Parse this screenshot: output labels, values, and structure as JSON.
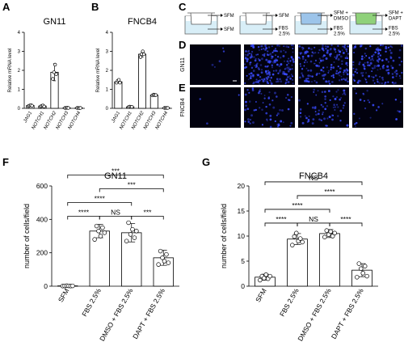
{
  "panels": {
    "A": "A",
    "B": "B",
    "C": "C",
    "D": "D",
    "E": "E",
    "F": "F",
    "G": "G"
  },
  "chart_data": [
    {
      "id": "A",
      "type": "bar",
      "title": "GN11",
      "ylabel": "Relative mRNA level",
      "categories": [
        "JAG1",
        "NOTCH1",
        "NOTCH2",
        "NOTCH3",
        "NOTCH4"
      ],
      "values": [
        0.15,
        0.12,
        1.9,
        0.02,
        0.02
      ],
      "errors": [
        0.03,
        0.03,
        0.45,
        0.01,
        0.01
      ],
      "points": [
        [
          0.12,
          0.15,
          0.17,
          0.14
        ],
        [
          0.1,
          0.13,
          0.15,
          0.1
        ],
        [
          1.55,
          1.9,
          2.3,
          1.8
        ],
        [
          0.02,
          0.02,
          0.03,
          0.02
        ],
        [
          0.02,
          0.02,
          0.01,
          0.02
        ]
      ],
      "ylim": [
        0,
        4
      ],
      "yticks": [
        0,
        1,
        2,
        3,
        4
      ]
    },
    {
      "id": "B",
      "type": "bar",
      "title": "FNCB4",
      "ylabel": "Relative mRNA level",
      "categories": [
        "JAG1",
        "NOTCH1",
        "NOTCH2",
        "NOTCH3",
        "NOTCH4"
      ],
      "values": [
        1.4,
        0.08,
        2.85,
        0.7,
        0.02
      ],
      "errors": [
        0.08,
        0.02,
        0.15,
        0.04,
        0.01
      ],
      "points": [
        [
          1.35,
          1.45,
          1.5,
          1.35
        ],
        [
          0.07,
          0.09,
          0.08,
          0.08
        ],
        [
          2.7,
          2.85,
          3.0,
          2.85
        ],
        [
          0.68,
          0.72,
          0.7,
          0.7
        ],
        [
          0.02,
          0.02,
          0.02,
          0.02
        ]
      ],
      "ylim": [
        0,
        4
      ],
      "yticks": [
        0,
        1,
        2,
        3,
        4
      ]
    },
    {
      "id": "F",
      "type": "bar",
      "title": "GN11",
      "ylabel": "number of cells/field",
      "categories": [
        "SFM",
        "FBS 2.5%",
        "DMSO + FBS 2.5%",
        "DAPT + FBS 2.5%"
      ],
      "values": [
        2,
        330,
        320,
        170
      ],
      "errors": [
        2,
        40,
        55,
        45
      ],
      "points": [
        [
          1,
          2,
          3,
          2,
          1,
          2
        ],
        [
          280,
          360,
          330,
          300,
          350,
          320
        ],
        [
          270,
          380,
          310,
          340,
          290,
          330
        ],
        [
          130,
          210,
          170,
          150,
          190,
          140
        ]
      ],
      "ylim": [
        0,
        600
      ],
      "yticks": [
        0,
        200,
        400,
        600
      ],
      "significance": [
        {
          "from": 0,
          "to": 1,
          "label": "****",
          "level": 1
        },
        {
          "from": 1,
          "to": 2,
          "label": "NS",
          "level": 1
        },
        {
          "from": 2,
          "to": 3,
          "label": "***",
          "level": 1
        },
        {
          "from": 0,
          "to": 2,
          "label": "****",
          "level": 2
        },
        {
          "from": 1,
          "to": 3,
          "label": "***",
          "level": 3
        },
        {
          "from": 0,
          "to": 3,
          "label": "***",
          "level": 4
        }
      ]
    },
    {
      "id": "G",
      "type": "bar",
      "title": "FNCB4",
      "ylabel": "number of cells/field",
      "categories": [
        "SFM",
        "FBS 2.5%",
        "DMSO + FBS 2.5%",
        "DAPT + FBS 2.5%"
      ],
      "values": [
        1.8,
        9.4,
        10.5,
        3.2
      ],
      "errors": [
        0.6,
        1.1,
        0.8,
        1.3
      ],
      "points": [
        [
          1.2,
          2.0,
          1.6,
          2.3,
          1.5,
          2.0
        ],
        [
          8.2,
          9.9,
          10.6,
          9.0,
          9.5,
          8.8
        ],
        [
          9.8,
          11.1,
          10.3,
          10.9,
          10.0,
          10.6
        ],
        [
          1.8,
          4.5,
          3.5,
          2.6,
          4.0,
          2.0
        ]
      ],
      "ylim": [
        0,
        20
      ],
      "yticks": [
        0,
        5,
        10,
        15,
        20
      ],
      "significance": [
        {
          "from": 0,
          "to": 1,
          "label": "****",
          "level": 1
        },
        {
          "from": 1,
          "to": 2,
          "label": "NS",
          "level": 1
        },
        {
          "from": 2,
          "to": 3,
          "label": "****",
          "level": 1
        },
        {
          "from": 0,
          "to": 2,
          "label": "****",
          "level": 2
        },
        {
          "from": 1,
          "to": 3,
          "label": "****",
          "level": 3
        },
        {
          "from": 0,
          "to": 3,
          "label": "NS",
          "level": 4
        }
      ]
    }
  ],
  "schematic": {
    "wells": [
      {
        "top": "SFM",
        "bottom": "SFM",
        "fill": "#ffffff"
      },
      {
        "top": "SFM",
        "bottom": "FBS\n2.5%",
        "fill": "#ffffff"
      },
      {
        "top": "SFM +\nDMSO",
        "bottom": "FBS\n2.5%",
        "fill": "#9cc4ea"
      },
      {
        "top": "SFM +\nDAPT",
        "bottom": "FBS\n2.5%",
        "fill": "#8fd17a"
      }
    ],
    "bottom_fill": "#d8eef7"
  },
  "micrographs": {
    "row_labels": [
      "GN11",
      "FNCB4"
    ],
    "densities": [
      [
        0.02,
        0.85,
        0.7,
        0.55
      ],
      [
        0.01,
        0.25,
        0.28,
        0.1
      ]
    ],
    "background": "#02020f",
    "dot_color": "#3b4cff"
  }
}
